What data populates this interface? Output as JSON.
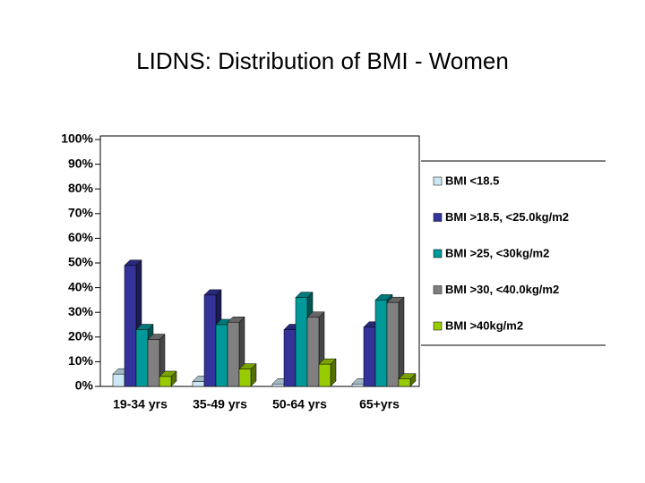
{
  "chart_data": {
    "type": "bar3d",
    "title": "LIDNS: Distribution of BMI - Women",
    "categories": [
      "19-34 yrs",
      "35-49 yrs",
      "50-64 yrs",
      "65+yrs"
    ],
    "series": [
      {
        "name": "BMI <18.5",
        "color": "#cce8f4",
        "values": [
          5,
          2,
          1,
          1
        ]
      },
      {
        "name": "BMI >18.5, <25.0kg/m2",
        "color": "#333399",
        "values": [
          49,
          37,
          23,
          24
        ]
      },
      {
        "name": "BMI >25, <30kg/m2",
        "color": "#009999",
        "values": [
          23,
          25,
          36,
          35
        ]
      },
      {
        "name": "BMI >30, <40.0kg/m2",
        "color": "#808080",
        "values": [
          19,
          26,
          28,
          34
        ]
      },
      {
        "name": "BMI >40kg/m2",
        "color": "#99cc00",
        "values": [
          4,
          7,
          9,
          3
        ]
      }
    ],
    "ylim": [
      0,
      100
    ],
    "yticks": [
      {
        "value": 0,
        "label": "0%"
      },
      {
        "value": 10,
        "label": "10%"
      },
      {
        "value": 20,
        "label": "20%"
      },
      {
        "value": 30,
        "label": "30%"
      },
      {
        "value": 40,
        "label": "40%"
      },
      {
        "value": 50,
        "label": "50%"
      },
      {
        "value": 60,
        "label": "60%"
      },
      {
        "value": 70,
        "label": "70%"
      },
      {
        "value": 80,
        "label": "80%"
      },
      {
        "value": 90,
        "label": "90%"
      },
      {
        "value": 100,
        "label": "100%"
      }
    ],
    "legend": "right"
  }
}
